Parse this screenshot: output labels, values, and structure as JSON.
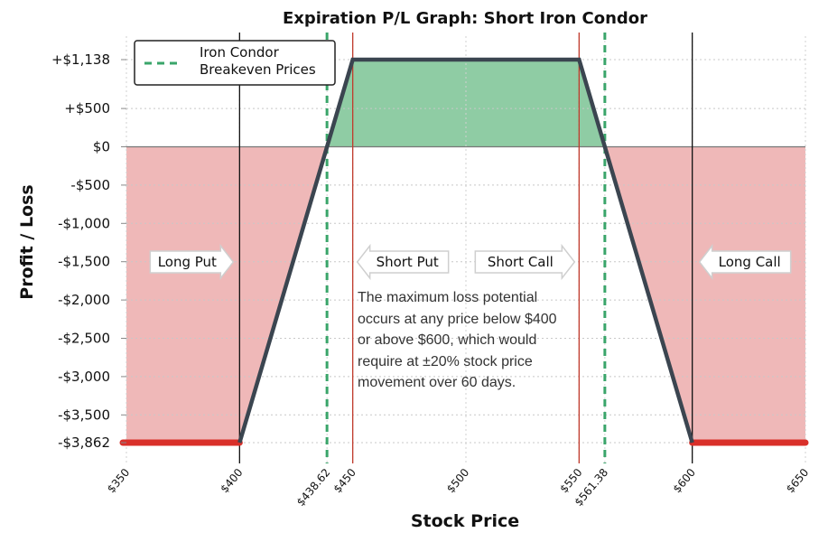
{
  "chart_data": {
    "type": "line",
    "title": "Expiration P/L Graph: Short Iron Condor",
    "xlabel": "Stock Price",
    "ylabel": "Profit / Loss",
    "xlim": [
      350,
      650
    ],
    "ylim": [
      -3862,
      1138
    ],
    "series": [
      {
        "points": [
          [
            350,
            -3862
          ],
          [
            400,
            -3862
          ],
          [
            450,
            1138
          ],
          [
            550,
            1138
          ],
          [
            600,
            -3862
          ],
          [
            650,
            -3862
          ]
        ]
      }
    ],
    "y_ticks": [
      {
        "value": 1138,
        "label": "+$1,138"
      },
      {
        "value": 500,
        "label": "+$500"
      },
      {
        "value": 0,
        "label": "$0"
      },
      {
        "value": -500,
        "label": "-$500"
      },
      {
        "value": -1000,
        "label": "-$1,000"
      },
      {
        "value": -1500,
        "label": "-$1,500"
      },
      {
        "value": -2000,
        "label": "-$2,000"
      },
      {
        "value": -2500,
        "label": "-$2,500"
      },
      {
        "value": -3000,
        "label": "-$3,000"
      },
      {
        "value": -3500,
        "label": "-$3,500"
      },
      {
        "value": -3862,
        "label": "-$3,862"
      }
    ],
    "x_ticks": [
      {
        "value": 350,
        "label": "$350"
      },
      {
        "value": 400,
        "label": "$400"
      },
      {
        "value": 438.62,
        "label": "$438.62"
      },
      {
        "value": 450,
        "label": "$450"
      },
      {
        "value": 500,
        "label": "$500"
      },
      {
        "value": 550,
        "label": "$550"
      },
      {
        "value": 561.38,
        "label": "$561.38"
      },
      {
        "value": 600,
        "label": "$600"
      },
      {
        "value": 650,
        "label": "$650"
      }
    ],
    "breakevens": [
      438.62,
      561.38
    ],
    "strikes": {
      "long_put": 400,
      "short_put": 450,
      "short_call": 550,
      "long_call": 600
    },
    "max_profit": 1138,
    "max_loss": -3862,
    "legend": {
      "label_line1": "Iron Condor",
      "label_line2": "Breakeven Prices",
      "position": "top-left"
    },
    "strike_labels": [
      {
        "strike": 400,
        "text": "Long Put",
        "direction": "right"
      },
      {
        "strike": 450,
        "text": "Short Put",
        "direction": "left"
      },
      {
        "strike": 550,
        "text": "Short Call",
        "direction": "right"
      },
      {
        "strike": 600,
        "text": "Long Call",
        "direction": "left"
      }
    ],
    "grid": true,
    "colors": {
      "profit_fill": "#8fcca4",
      "loss_fill": "#efb8b8",
      "pl_line": "#3b4550",
      "breakeven_line": "#3aa56a",
      "short_strike_line": "#c0392b",
      "long_strike_line": "#111111",
      "max_loss_marker": "#d9302a"
    }
  },
  "annotation": {
    "lines": [
      "The maximum loss potential",
      "occurs at any price below $400",
      "or above $600, which would",
      "require at ±20% stock price",
      "movement over 60 days."
    ]
  }
}
